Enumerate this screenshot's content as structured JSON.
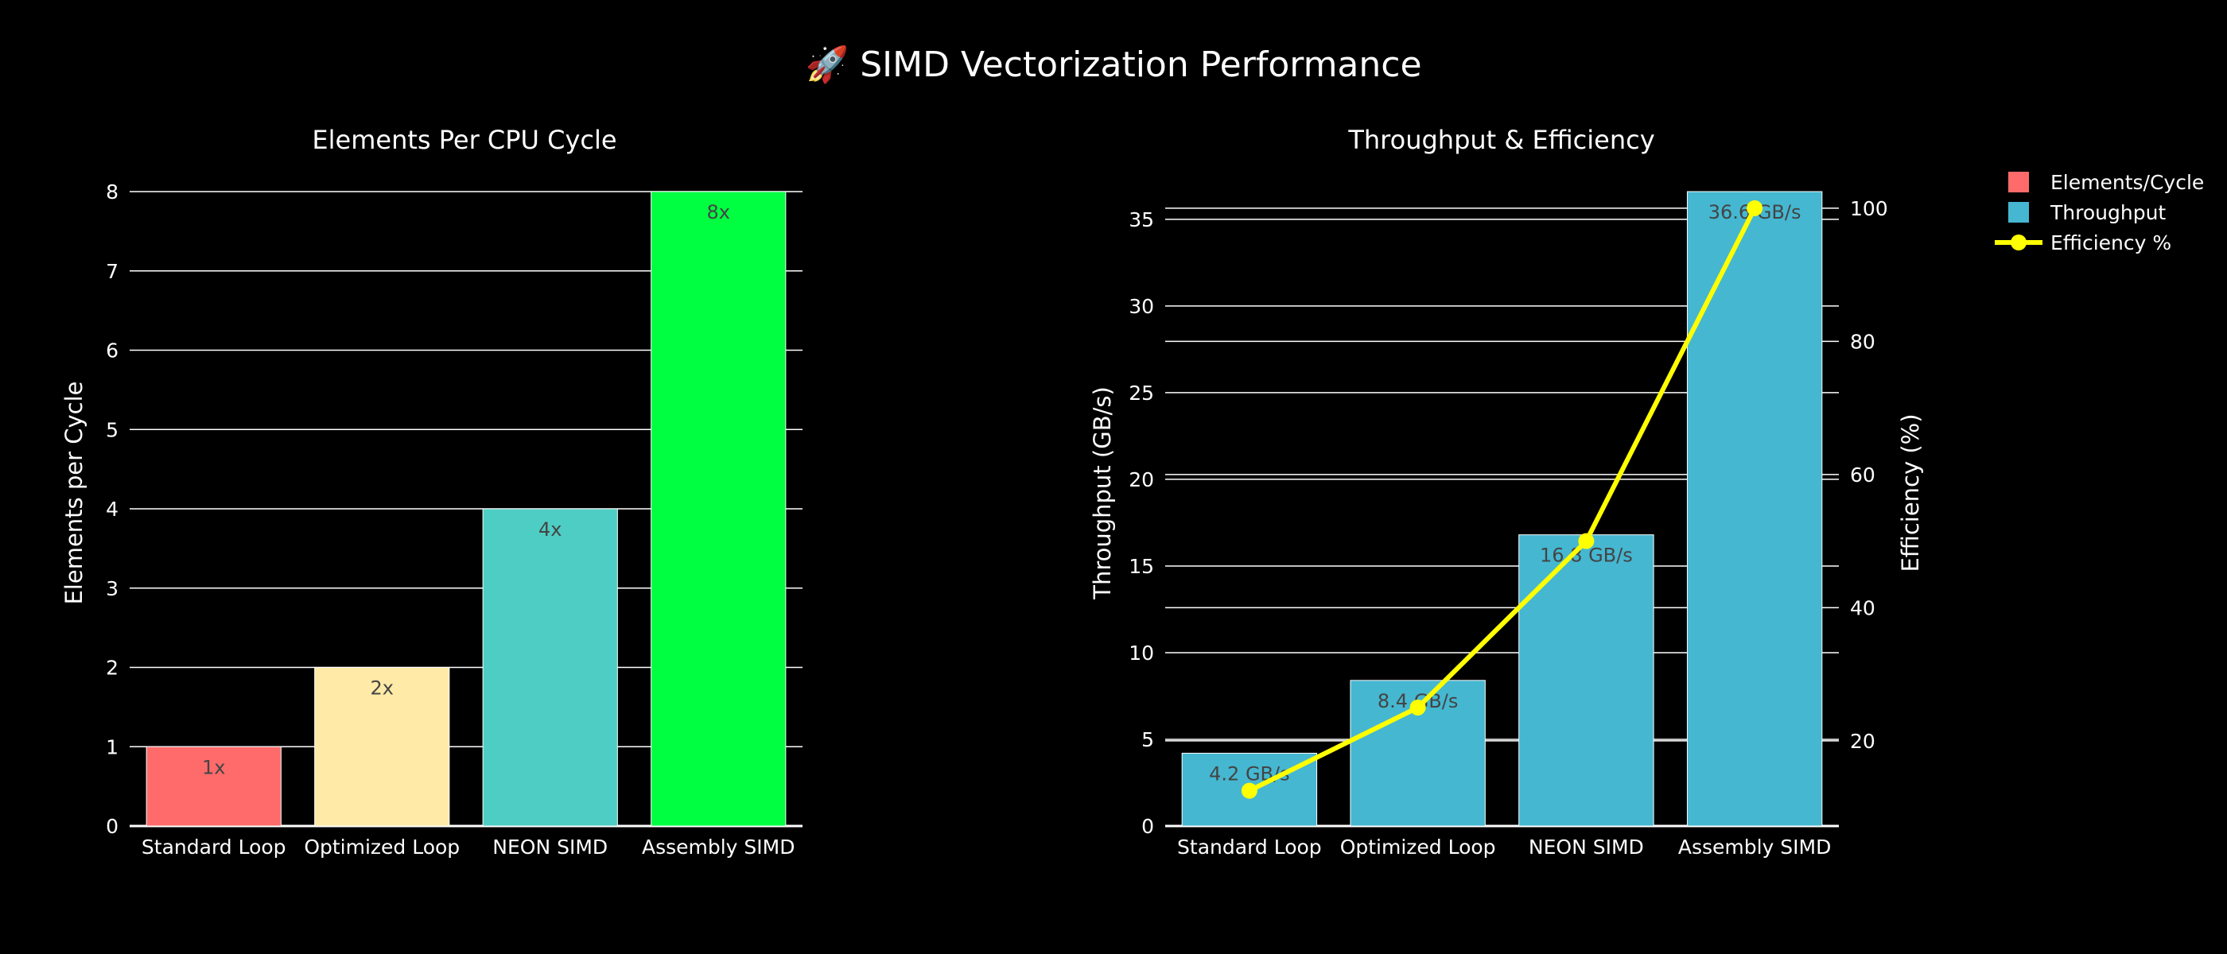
{
  "page": {
    "title": "🚀 SIMD Vectorization Performance",
    "background": "#000000",
    "text_color": "#ffffff",
    "grid_color": "#ffffff"
  },
  "legend": {
    "placement": "right",
    "items": [
      {
        "label": "Elements/Cycle",
        "kind": "box",
        "color": "#ff6b6b"
      },
      {
        "label": "Throughput",
        "kind": "box",
        "color": "#45b7d1"
      },
      {
        "label": "Efficiency %",
        "kind": "line",
        "color": "#ffff00"
      }
    ]
  },
  "chart_data": [
    {
      "type": "bar",
      "title": "Elements Per CPU Cycle",
      "categories": [
        "Standard Loop",
        "Optimized Loop",
        "NEON SIMD",
        "Assembly SIMD"
      ],
      "ylabel": "Elements per Cycle",
      "ylim": [
        0,
        8
      ],
      "yticks": [
        0,
        1,
        2,
        3,
        4,
        5,
        6,
        7,
        8
      ],
      "grid": true,
      "series": [
        {
          "name": "Elements/Cycle",
          "values": [
            1,
            2,
            4,
            8
          ],
          "labels": [
            "1x",
            "2x",
            "4x",
            "8x"
          ],
          "colors": [
            "#ff6b6b",
            "#ffeaa7",
            "#4ecdc4",
            "#00ff41"
          ]
        }
      ]
    },
    {
      "type": "bar",
      "title": "Throughput & Efficiency",
      "categories": [
        "Standard Loop",
        "Optimized Loop",
        "NEON SIMD",
        "Assembly SIMD"
      ],
      "ylabel": "Throughput (GB/s)",
      "y2label": "Efficiency (%)",
      "ylim": [
        0,
        36.6
      ],
      "yticks": [
        0,
        5,
        10,
        15,
        20,
        25,
        30,
        35
      ],
      "y2lim": [
        7.2,
        102.5
      ],
      "y2ticks": [
        20,
        40,
        60,
        80,
        100
      ],
      "grid": true,
      "series": [
        {
          "name": "Throughput",
          "type": "bar",
          "axis": "y",
          "values": [
            4.2,
            8.4,
            16.8,
            36.6
          ],
          "labels": [
            "4.2 GB/s",
            "8.4 GB/s",
            "16.8 GB/s",
            "36.6 GB/s"
          ],
          "color": "#45b7d1"
        },
        {
          "name": "Efficiency %",
          "type": "line",
          "axis": "y2",
          "values": [
            12.5,
            25,
            50,
            100
          ],
          "color": "#ffff00"
        }
      ]
    }
  ]
}
